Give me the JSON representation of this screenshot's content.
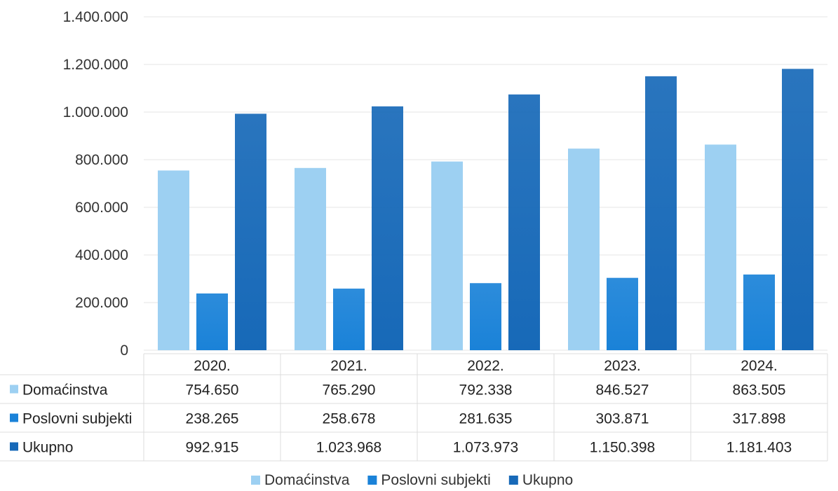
{
  "chart_data": {
    "type": "bar",
    "title": "",
    "xlabel": "",
    "ylabel": "",
    "categories": [
      "2020.",
      "2021.",
      "2022.",
      "2023.",
      "2024."
    ],
    "series": [
      {
        "name": "Domaćinstva",
        "color": "#9dd0f2",
        "values": [
          754650,
          765290,
          792338,
          846527,
          863505
        ],
        "labels": [
          "754.650",
          "765.290",
          "792.338",
          "846.527",
          "863.505"
        ]
      },
      {
        "name": "Poslovni subjekti",
        "color": "#1a82d8",
        "values": [
          238265,
          258678,
          281635,
          303871,
          317898
        ],
        "labels": [
          "238.265",
          "258.678",
          "281.635",
          "303.871",
          "317.898"
        ]
      },
      {
        "name": "Ukupno",
        "color": "#1769b8",
        "values": [
          992915,
          1023968,
          1073973,
          1150398,
          1181403
        ],
        "labels": [
          "992.915",
          "1.023.968",
          "1.073.973",
          "1.150.398",
          "1.181.403"
        ]
      }
    ],
    "ylim": [
      0,
      1400000
    ],
    "yticks": [
      0,
      200000,
      400000,
      600000,
      800000,
      1000000,
      1200000,
      1400000
    ],
    "ytick_labels": [
      "0",
      "200.000",
      "400.000",
      "600.000",
      "800.000",
      "1.000.000",
      "1.200.000",
      "1.400.000"
    ],
    "grid": true,
    "legend": "bottom",
    "data_table": true
  }
}
